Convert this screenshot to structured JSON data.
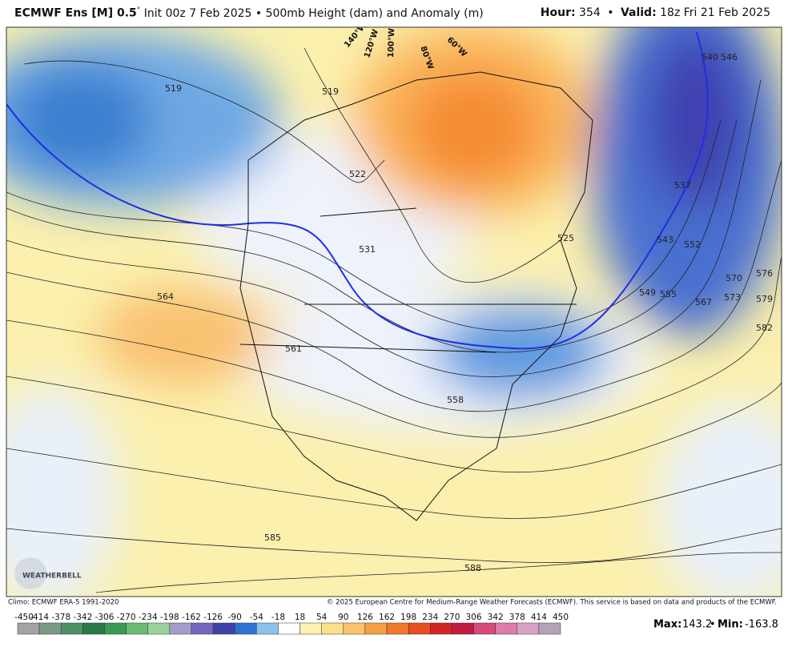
{
  "header": {
    "model": "ECMWF Ens [M] 0.5",
    "degree": "°",
    "description": "Init 00z 7 Feb 2025 • 500mb Height (dam) and Anomaly (m)",
    "hour_label": "Hour:",
    "hour": 354,
    "separator": "•",
    "valid_label": "Valid:",
    "valid": "18z Fri 21 Feb 2025"
  },
  "map": {
    "contour_labels": [
      "519",
      "519",
      "522",
      "525",
      "531",
      "537",
      "540",
      "543",
      "546",
      "549",
      "552",
      "555",
      "558",
      "561",
      "564",
      "567",
      "570",
      "573",
      "576",
      "579",
      "582",
      "585",
      "588"
    ],
    "longitude_labels": [
      "140°W",
      "120°W",
      "100°W",
      "80°W",
      "60°W"
    ],
    "logo": "WEATHERBELL"
  },
  "footer": {
    "climo": "Climo: ECMWF ERA-5 1991-2020",
    "copyright": "© 2025 European Centre for Medium-Range Weather Forecasts (ECMWF). This service is based on data and products of the ECMWF."
  },
  "colorbar": {
    "ticks": [
      -450,
      -414,
      -378,
      -342,
      -306,
      -270,
      -234,
      -198,
      -162,
      -126,
      -90,
      -54,
      -18,
      18,
      54,
      90,
      126,
      162,
      198,
      234,
      270,
      306,
      342,
      378,
      414,
      450
    ],
    "colors": [
      "#a3a3a3",
      "#7a9a86",
      "#4f8f66",
      "#2a7b45",
      "#3a9a55",
      "#6cbc72",
      "#9ad39a",
      "#a39ccd",
      "#7467bb",
      "#3d43a8",
      "#2f72d2",
      "#8cc0ee",
      "#ffffff",
      "#fdf1b0",
      "#fcdf88",
      "#fbc468",
      "#f8a048",
      "#f2782a",
      "#e64f1e",
      "#d22424",
      "#c21c40",
      "#d64a7c",
      "#e07aa8",
      "#d8a2c8",
      "#b4a2ba"
    ]
  },
  "stats": {
    "max_label": "Max:",
    "max": 143.2,
    "min_label": "Min:",
    "min": -163.8
  }
}
